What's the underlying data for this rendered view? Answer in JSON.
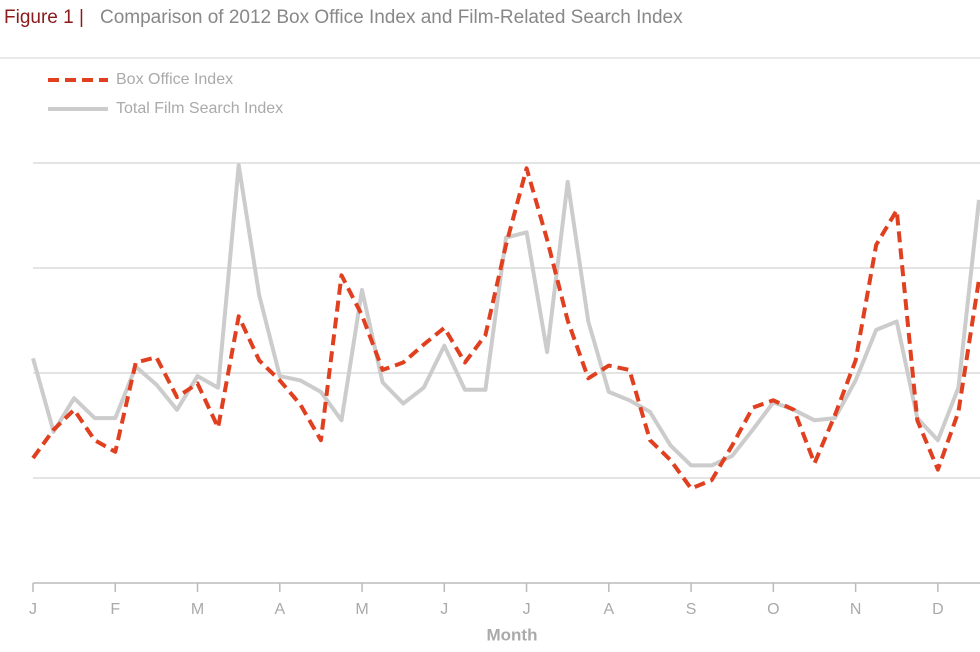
{
  "chart_data": {
    "type": "line",
    "figure_label": "Figure 1 |",
    "title": "Comparison of 2012 Box Office Index and Film-Related Search Index",
    "x_label": "Month",
    "categories": [
      "J",
      null,
      null,
      null,
      "F",
      null,
      null,
      null,
      "M",
      null,
      null,
      null,
      "A",
      null,
      null,
      null,
      "M",
      null,
      null,
      null,
      "J",
      null,
      null,
      null,
      "J",
      null,
      null,
      null,
      "A",
      null,
      null,
      null,
      "S",
      null,
      null,
      null,
      "O",
      null,
      null,
      null,
      "N",
      null,
      null,
      null,
      "D",
      null,
      null
    ],
    "series": [
      {
        "name": "Box Office Index",
        "color": "#e0401f",
        "dashed": true,
        "values": [
          1.19,
          1.46,
          1.65,
          1.36,
          1.25,
          2.1,
          2.15,
          1.77,
          1.9,
          1.48,
          2.54,
          2.12,
          1.93,
          1.7,
          1.36,
          2.93,
          2.55,
          2.03,
          2.1,
          2.27,
          2.43,
          2.1,
          2.36,
          3.22,
          3.95,
          3.27,
          2.5,
          1.95,
          2.07,
          2.03,
          1.36,
          1.17,
          0.9,
          0.98,
          1.31,
          1.67,
          1.74,
          1.65,
          1.14,
          1.6,
          2.12,
          3.22,
          3.55,
          1.55,
          1.08,
          1.63,
          2.89
        ]
      },
      {
        "name": "Total Film Search Index",
        "color": "#cccccc",
        "dashed": false,
        "values": [
          2.14,
          1.44,
          1.76,
          1.57,
          1.57,
          2.06,
          1.89,
          1.65,
          1.97,
          1.86,
          3.98,
          2.74,
          1.97,
          1.93,
          1.82,
          1.55,
          2.79,
          1.91,
          1.71,
          1.86,
          2.26,
          1.84,
          1.84,
          3.29,
          3.34,
          2.2,
          3.82,
          2.49,
          1.82,
          1.74,
          1.63,
          1.31,
          1.12,
          1.12,
          1.21,
          1.46,
          1.72,
          1.65,
          1.55,
          1.57,
          1.93,
          2.41,
          2.49,
          1.57,
          1.36,
          1.86,
          3.65
        ]
      }
    ],
    "ylim": [
      0,
      5
    ],
    "yticks": [
      1,
      2,
      3,
      4
    ],
    "grid": true
  }
}
